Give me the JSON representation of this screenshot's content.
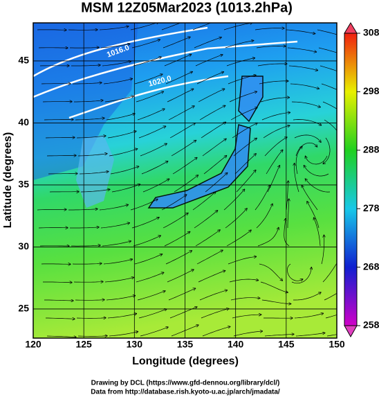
{
  "title": "MSM 12Z05Mar2023 (1013.2hPa)",
  "x_axis": {
    "label": "Longitude (degrees)",
    "lim": [
      120,
      150
    ],
    "ticks": [
      120,
      125,
      130,
      135,
      140,
      145,
      150
    ]
  },
  "y_axis": {
    "label": "Latitude  (degrees)",
    "lim": [
      22.65,
      48.07
    ],
    "ticks": [
      25,
      30,
      35,
      40,
      45
    ]
  },
  "colorbar": {
    "lim": [
      258,
      308
    ],
    "ticks": [
      258,
      268,
      278,
      288,
      298,
      308
    ]
  },
  "contour_labels": [
    "1016.0",
    "1020.0"
  ],
  "credits": [
    "Drawing by DCL (https://www.gfd-dennou.org/library/dcl/)",
    "Data from http://database.rish.kyoto-u.ac.jp/arch/jmadata/"
  ]
}
